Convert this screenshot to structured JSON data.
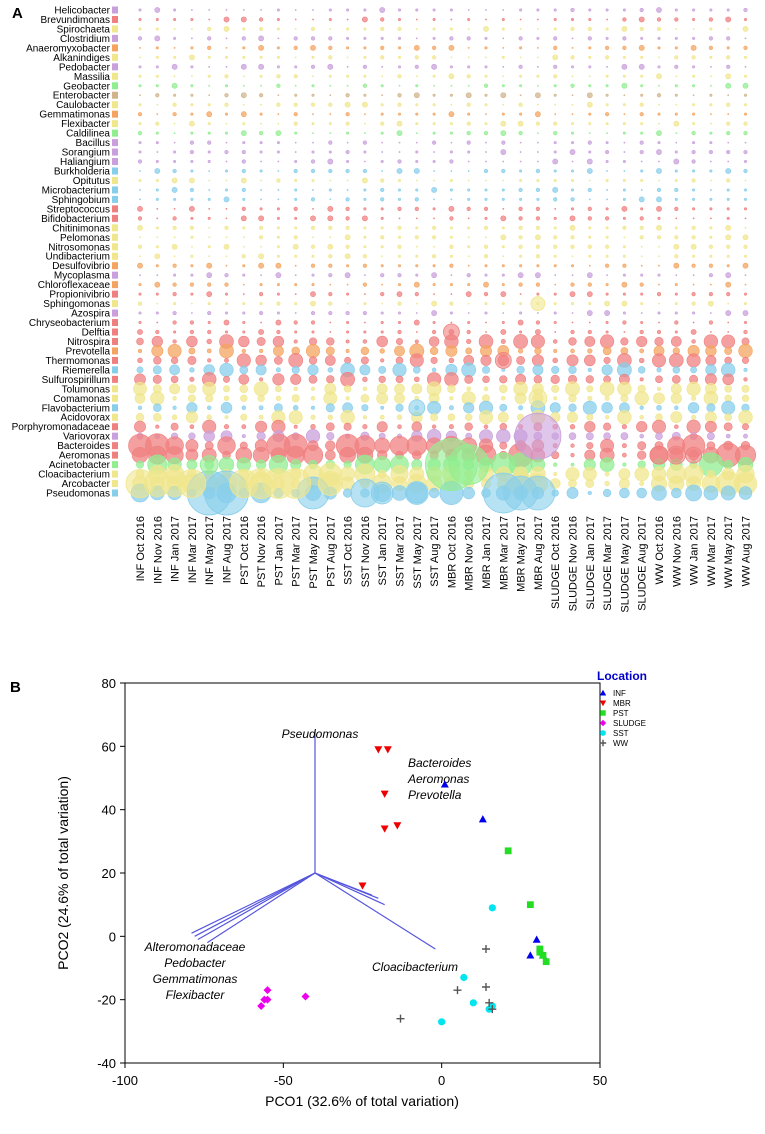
{
  "panel_a": {
    "letter": "A",
    "genera": [
      "Helicobacter",
      "Brevundimonas",
      "Spirochaeta",
      "Clostridium",
      "Anaeromyxobacter",
      "Alkanindiges",
      "Pedobacter",
      "Massilia",
      "Geobacter",
      "Enterobacter",
      "Caulobacter",
      "Gemmatimonas",
      "Flexibacter",
      "Caldilinea",
      "Bacillus",
      "Sorangium",
      "Haliangium",
      "Burkholderia",
      "Opitutus",
      "Microbacterium",
      "Sphingobium",
      "Streptococcus",
      "Bifidobacterium",
      "Chitinimonas",
      "Pelomonas",
      "Nitrosomonas",
      "Undibacterium",
      "Desulfovibrio",
      "Mycoplasma",
      "Chloroflexaceae",
      "Propionivibrio",
      "Sphingomonas",
      "Azospira",
      "Chryseobacterium",
      "Delftia",
      "Nitrospira",
      "Prevotella",
      "Thermomonas",
      "Riemerella",
      "Sulfurospirillum",
      "Tolumonas",
      "Comamonas",
      "Flavobacterium",
      "Acidovorax",
      "Porphyromonadaceae",
      "Variovorax",
      "Bacteroides",
      "Aeromonas",
      "Acinetobacter",
      "Cloacibacterium",
      "Arcobacter",
      "Pseudomonas"
    ],
    "genus_colors": [
      "#c9a0dc",
      "#f08080",
      "#f0e68c",
      "#c9a0dc",
      "#f4a460",
      "#f0e68c",
      "#c9a0dc",
      "#f0e68c",
      "#90ee90",
      "#d2b48c",
      "#f0e68c",
      "#f4a460",
      "#f0e68c",
      "#90ee90",
      "#c9a0dc",
      "#c9a0dc",
      "#c9a0dc",
      "#87ceeb",
      "#f0e68c",
      "#87ceeb",
      "#87ceeb",
      "#f08080",
      "#f08080",
      "#f0e68c",
      "#f0e68c",
      "#f0e68c",
      "#f0e68c",
      "#f4a460",
      "#c9a0dc",
      "#f4a460",
      "#f08080",
      "#f0e68c",
      "#c9a0dc",
      "#f08080",
      "#f08080",
      "#f08080",
      "#f4a460",
      "#f08080",
      "#87ceeb",
      "#f08080",
      "#f0e68c",
      "#f0e68c",
      "#87ceeb",
      "#f0e68c",
      "#f08080",
      "#c9a0dc",
      "#f08080",
      "#f08080",
      "#90ee90",
      "#f0e68c",
      "#f0e68c",
      "#87ceeb"
    ],
    "samples": [
      "INF Oct 2016",
      "INF Nov 2016",
      "INF Jan 2017",
      "INF Mar 2017",
      "INF May 2017",
      "INF Aug 2017",
      "PST Oct 2016",
      "PST Nov 2016",
      "PST Jan 2017",
      "PST Mar 2017",
      "PST May 2017",
      "PST Aug 2017",
      "SST Oct 2016",
      "SST Nov 2016",
      "SST Jan 2017",
      "SST Mar 2017",
      "SST May 2017",
      "SST Aug 2017",
      "MBR Oct 2016",
      "MBR Nov 2016",
      "MBR Jan 2017",
      "MBR Mar 2017",
      "MBR May 2017",
      "MBR Aug 2017",
      "SLUDGE Oct 2016",
      "SLUDGE Nov 2016",
      "SLUDGE Jan 2017",
      "SLUDGE Mar 2017",
      "SLUDGE May 2017",
      "SLUDGE Aug 2017",
      "WW Oct 2016",
      "WW Nov 2016",
      "WW Jan 2017",
      "WW Mar 2017",
      "WW May 2017",
      "WW Aug 2017"
    ]
  },
  "chart_data": {
    "type": "scatter",
    "panel": "B",
    "xlabel": "PCO1 (32.6% of total variation)",
    "ylabel": "PCO2 (24.6% of total variation)",
    "xlim": [
      -100,
      50
    ],
    "ylim": [
      -40,
      80
    ],
    "xticks": [
      -100,
      -50,
      0,
      50
    ],
    "yticks": [
      -40,
      -20,
      0,
      20,
      40,
      60,
      80
    ],
    "legend_title": "Location",
    "series": [
      {
        "name": "INF",
        "marker": "triangle-up",
        "color": "#0000ee",
        "points": [
          [
            1,
            48
          ],
          [
            13,
            37
          ],
          [
            28,
            -6
          ],
          [
            30,
            -1
          ],
          [
            32,
            -6
          ]
        ]
      },
      {
        "name": "MBR",
        "marker": "triangle-down",
        "color": "#ee0000",
        "points": [
          [
            -20,
            59
          ],
          [
            -17,
            59
          ],
          [
            -18,
            45
          ],
          [
            -18,
            34
          ],
          [
            -14,
            35
          ],
          [
            -25,
            16
          ]
        ]
      },
      {
        "name": "PST",
        "marker": "square",
        "color": "#22dd22",
        "points": [
          [
            21,
            27
          ],
          [
            28,
            10
          ],
          [
            31,
            -4
          ],
          [
            32,
            -6
          ],
          [
            33,
            -8
          ],
          [
            31,
            -5
          ]
        ]
      },
      {
        "name": "SLUDGE",
        "marker": "diamond",
        "color": "#ee00ee",
        "points": [
          [
            -55,
            -17
          ],
          [
            -55,
            -20
          ],
          [
            -56,
            -20
          ],
          [
            -57,
            -22
          ],
          [
            -43,
            -19
          ]
        ]
      },
      {
        "name": "SST",
        "marker": "circle",
        "color": "#00e5ee",
        "points": [
          [
            16,
            9
          ],
          [
            7,
            -13
          ],
          [
            10,
            -21
          ],
          [
            15,
            -23
          ],
          [
            16,
            -22
          ],
          [
            0,
            -27
          ]
        ]
      },
      {
        "name": "WW",
        "marker": "plus",
        "color": "#555555",
        "points": [
          [
            14,
            -4
          ],
          [
            5,
            -17
          ],
          [
            14,
            -16
          ],
          [
            15,
            -21
          ],
          [
            16,
            -23
          ],
          [
            -13,
            -26
          ]
        ]
      }
    ],
    "vectors": {
      "origin": [
        -40,
        20
      ],
      "items": [
        {
          "label": "Pseudomonas",
          "end": [
            -40,
            65
          ]
        },
        {
          "label": "Bacteroides",
          "end": [
            -22,
            13
          ]
        },
        {
          "label": "Aeromonas",
          "end": [
            -20,
            12
          ]
        },
        {
          "label": "Prevotella",
          "end": [
            -18,
            10
          ]
        },
        {
          "label": "Cloacibacterium",
          "end": [
            -2,
            -4
          ]
        },
        {
          "label": "Alteromonadaceae",
          "end": [
            -79,
            1
          ]
        },
        {
          "label": "Pedobacter",
          "end": [
            -78,
            0
          ]
        },
        {
          "label": "Gemmatimonas",
          "end": [
            -77,
            -1
          ]
        },
        {
          "label": "Flexibacter",
          "end": [
            -74,
            -2
          ]
        }
      ]
    },
    "vector_label_groups": [
      {
        "lines": [
          "Pseudomonas"
        ]
      },
      {
        "lines": [
          "Bacteroides",
          "Aeromonas",
          "Prevotella"
        ]
      },
      {
        "lines": [
          "Cloacibacterium"
        ]
      },
      {
        "lines": [
          "Alteromonadaceae",
          "Pedobacter",
          "Gemmatimonas",
          "Flexibacter"
        ]
      }
    ]
  },
  "panel_b": {
    "letter": "B"
  }
}
